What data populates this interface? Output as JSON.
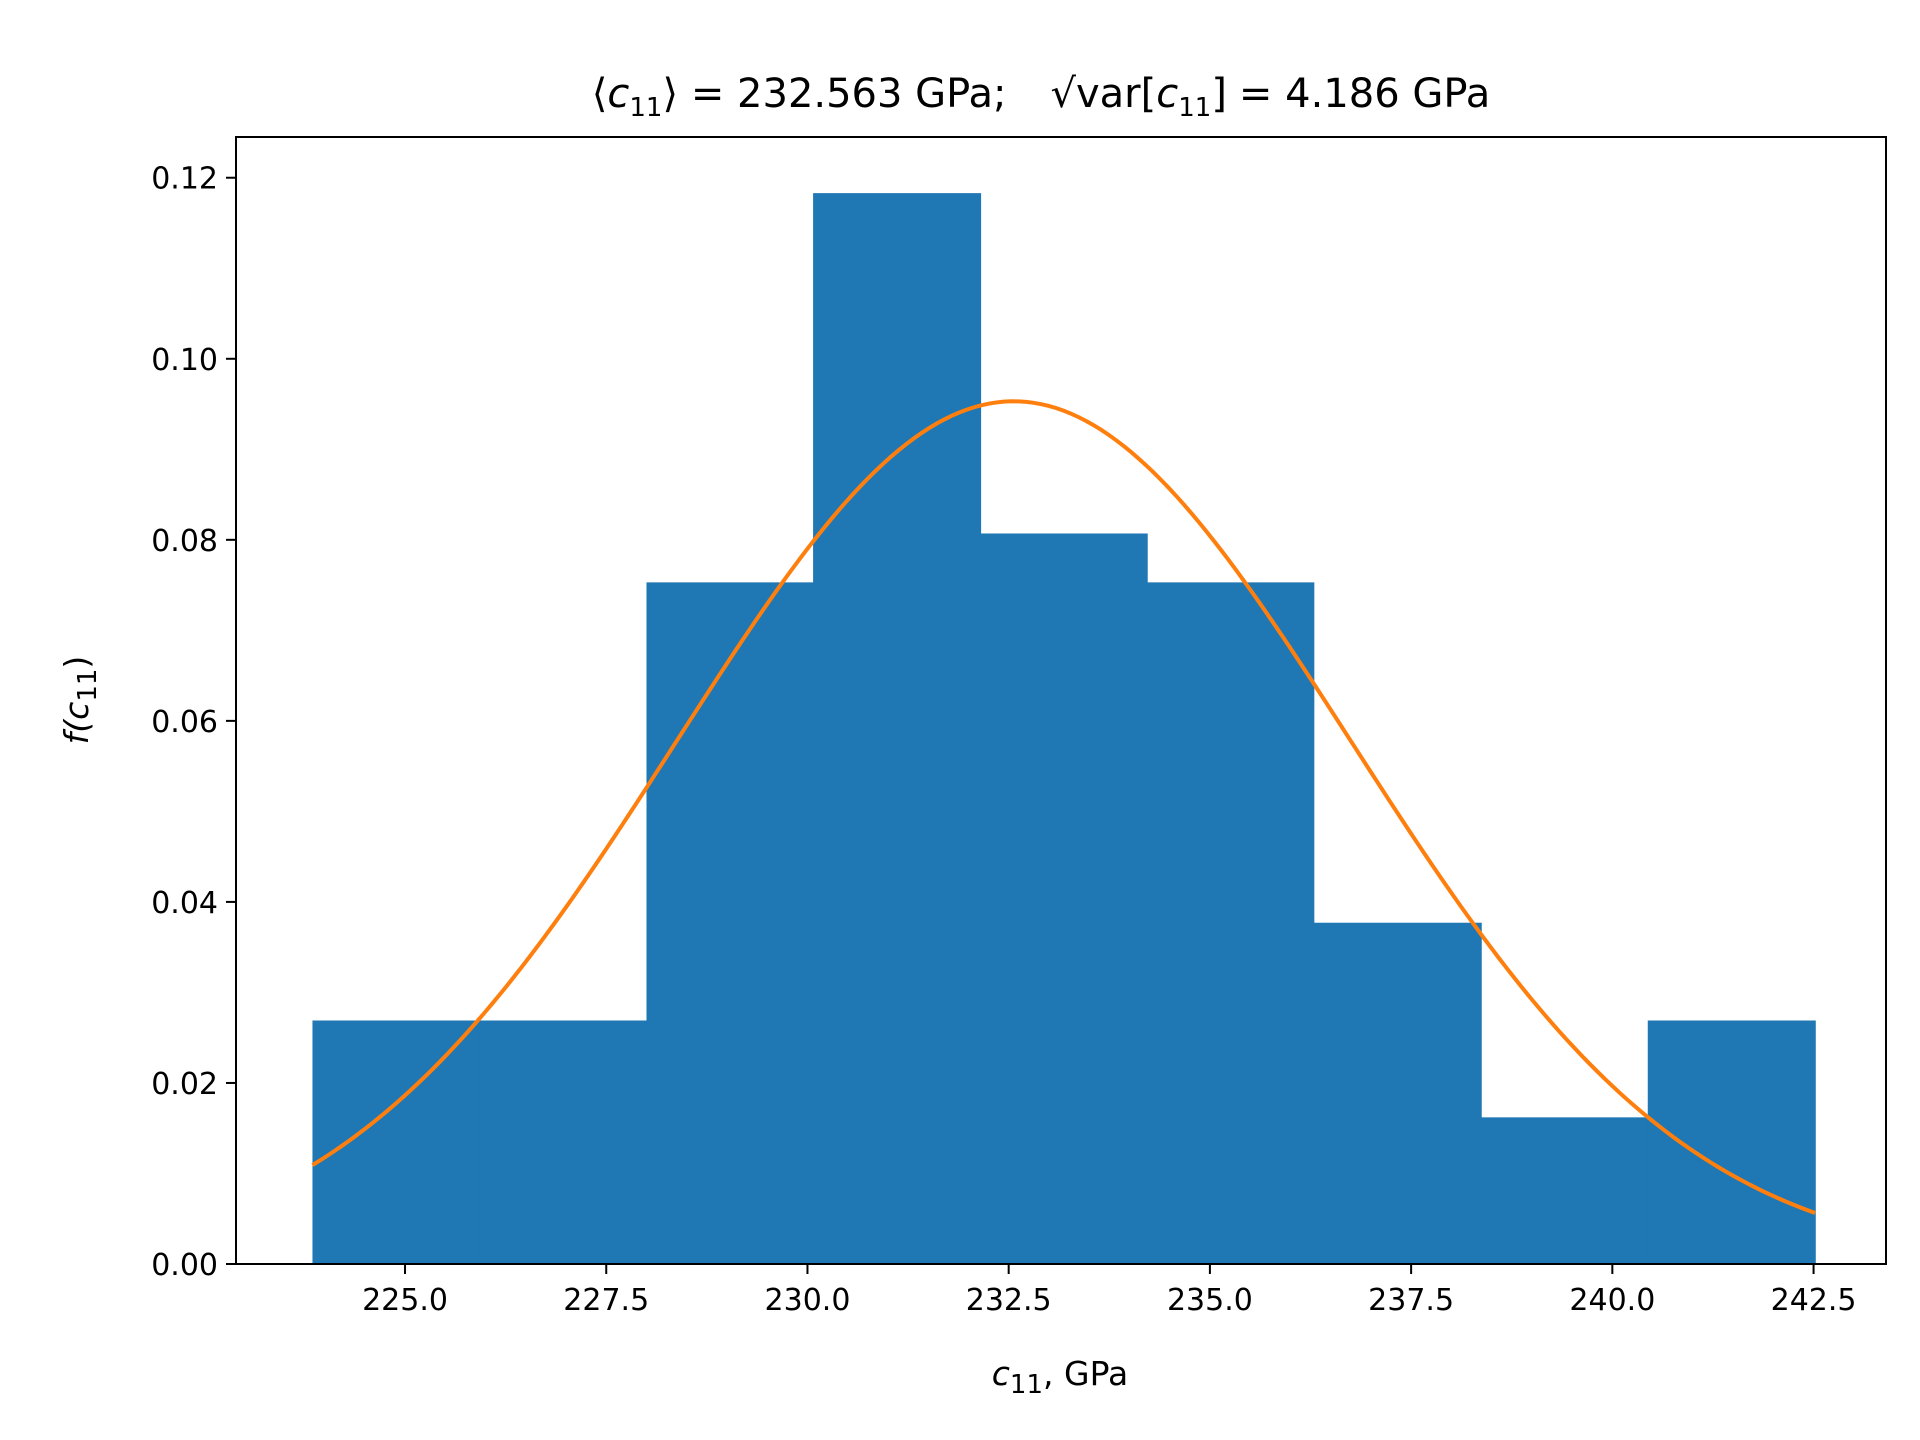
{
  "chart_data": {
    "type": "bar",
    "title": {
      "mean_symbol": "c",
      "mean_sub": "11",
      "mean_text": "= 232.563 GPa;",
      "std_prefix": "var[",
      "std_symbol": "c",
      "std_sub": "11",
      "std_suffix": "]",
      "std_text": "= 4.186 GPa"
    },
    "xlabel": {
      "symbol": "c",
      "sub": "11",
      "text": ", GPa"
    },
    "ylabel": {
      "prefix": "f(",
      "symbol": "c",
      "sub": "11",
      "suffix": ")"
    },
    "xlim": [
      222.9,
      243.4
    ],
    "ylim": [
      0,
      0.1245
    ],
    "x_ticks": [
      225.0,
      227.5,
      230.0,
      232.5,
      235.0,
      237.5,
      240.0,
      242.5
    ],
    "x_tick_labels": [
      "225.0",
      "227.5",
      "230.0",
      "232.5",
      "235.0",
      "237.5",
      "240.0",
      "242.5"
    ],
    "y_ticks": [
      0.0,
      0.02,
      0.04,
      0.06,
      0.08,
      0.1,
      0.12
    ],
    "y_tick_labels": [
      "0.00",
      "0.02",
      "0.04",
      "0.06",
      "0.08",
      "0.10",
      "0.12"
    ],
    "histogram": {
      "bin_edges": [
        223.85,
        225.92,
        228.0,
        230.07,
        232.15,
        234.22,
        236.29,
        238.37,
        240.44,
        242.52
      ],
      "values": [
        0.0269,
        0.0269,
        0.0753,
        0.1183,
        0.0807,
        0.0753,
        0.0377,
        0.0162,
        0.0269
      ],
      "color": "#1f77b4"
    },
    "fit": {
      "type": "normal-pdf",
      "mean": 232.563,
      "std": 4.186,
      "x_range": [
        223.85,
        242.52
      ],
      "color": "#ff7f0e"
    },
    "grid": false,
    "legend": "none"
  }
}
